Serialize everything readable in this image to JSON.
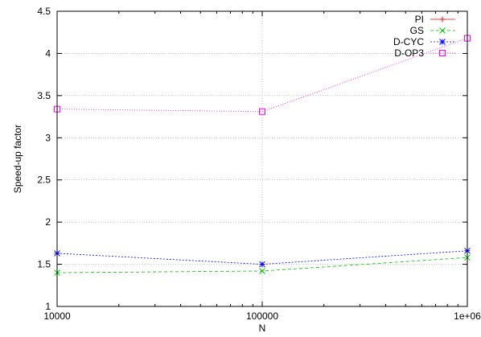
{
  "chart_data": {
    "type": "line",
    "title": "",
    "xlabel": "N",
    "ylabel": "Speed-up factor",
    "xscale": "log",
    "xlim": [
      10000,
      1000000
    ],
    "ylim": [
      1,
      4.5
    ],
    "grid": true,
    "legend_position": "top-right",
    "x_ticks": [
      {
        "value": 10000,
        "label": "10000"
      },
      {
        "value": 100000,
        "label": "100000"
      },
      {
        "value": 1000000,
        "label": "1e+06"
      }
    ],
    "y_ticks": [
      {
        "value": 1,
        "label": "1"
      },
      {
        "value": 1.5,
        "label": "1.5"
      },
      {
        "value": 2,
        "label": "2"
      },
      {
        "value": 2.5,
        "label": "2.5"
      },
      {
        "value": 3,
        "label": "3"
      },
      {
        "value": 3.5,
        "label": "3.5"
      },
      {
        "value": 4,
        "label": "4"
      },
      {
        "value": 4.5,
        "label": "4.5"
      }
    ],
    "x": [
      10000,
      100000,
      1000000
    ],
    "series": [
      {
        "name": "PI",
        "values": [
          null,
          null,
          null
        ],
        "color": "#ff0000",
        "marker": "plus",
        "dash": "solid"
      },
      {
        "name": "GS",
        "values": [
          1.4,
          1.42,
          1.58
        ],
        "color": "#00c000",
        "marker": "cross",
        "dash": "4,3"
      },
      {
        "name": "D-CYC",
        "values": [
          1.63,
          1.5,
          1.66
        ],
        "color": "#0000ff",
        "marker": "star",
        "dash": "2,2"
      },
      {
        "name": "D-OP3",
        "values": [
          3.34,
          3.31,
          4.18
        ],
        "color": "#ff00ff",
        "marker": "square",
        "dash": "1,2"
      }
    ]
  }
}
